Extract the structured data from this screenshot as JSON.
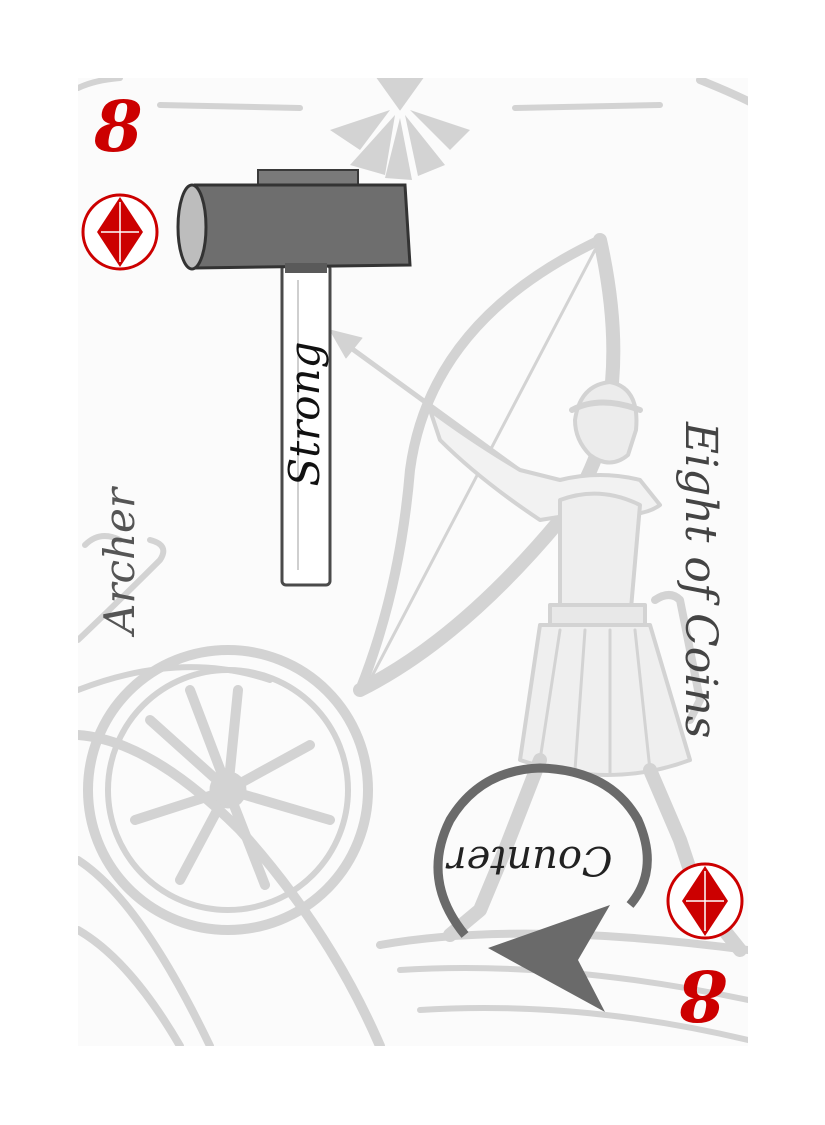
{
  "card": {
    "rank": "8",
    "suit": "diamond",
    "title": "Eight of Coins",
    "unit_type": "Archer",
    "attribute": "Strong",
    "ability": "Counter"
  },
  "colors": {
    "suit_red": "#cc0000",
    "art_gray": "#d3d3d3",
    "hammer_head": "#6e6e6e",
    "arrow_gray": "#6a6a6a"
  },
  "icons": {
    "suit": "diamond-suit-icon",
    "hammer": "hammer-icon",
    "counter": "circular-arrow-icon"
  }
}
